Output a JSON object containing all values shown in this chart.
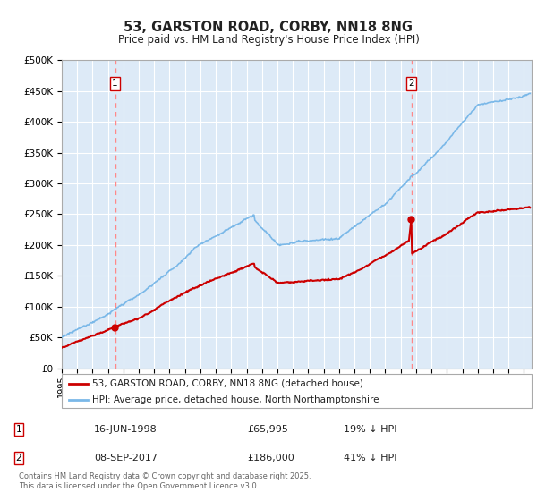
{
  "title": "53, GARSTON ROAD, CORBY, NN18 8NG",
  "subtitle": "Price paid vs. HM Land Registry's House Price Index (HPI)",
  "ylim": [
    0,
    500000
  ],
  "yticks": [
    0,
    50000,
    100000,
    150000,
    200000,
    250000,
    300000,
    350000,
    400000,
    450000,
    500000
  ],
  "xlim_start": 1995.0,
  "xlim_end": 2025.5,
  "bg_color": "#ddeaf7",
  "hpi_color": "#7ab8e8",
  "price_color": "#cc0000",
  "transaction1_x": 1998.46,
  "transaction1_y": 65995,
  "transaction2_x": 2017.69,
  "transaction2_y": 186000,
  "legend_entry1": "53, GARSTON ROAD, CORBY, NN18 8NG (detached house)",
  "legend_entry2": "HPI: Average price, detached house, North Northamptonshire",
  "footer": "Contains HM Land Registry data © Crown copyright and database right 2025.\nThis data is licensed under the Open Government Licence v3.0.",
  "grid_color": "#ffffff",
  "dashed_color": "#ff8888",
  "transaction1_date": "16-JUN-1998",
  "transaction1_price": "£65,995",
  "transaction1_note": "19% ↓ HPI",
  "transaction2_date": "08-SEP-2017",
  "transaction2_price": "£186,000",
  "transaction2_note": "41% ↓ HPI"
}
